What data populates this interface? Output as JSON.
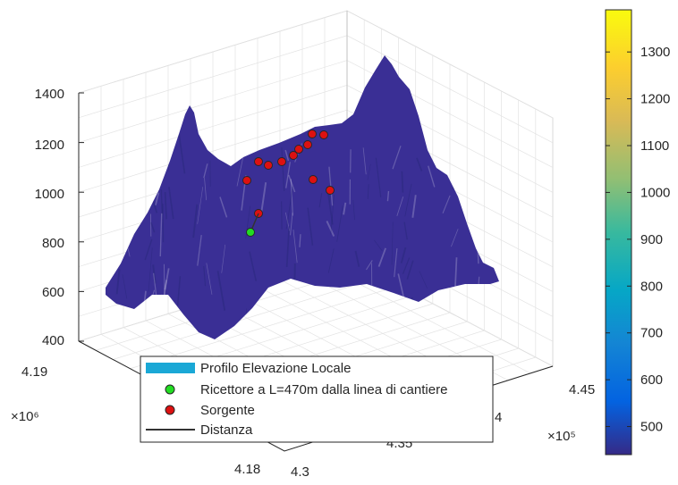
{
  "chart_data": {
    "type": "surface3d",
    "colormap": "parula",
    "zlim": [
      400,
      1400
    ],
    "z_ticks": [
      "400",
      "600",
      "800",
      "1000",
      "1200",
      "1400"
    ],
    "x_ticks": [
      "4.3",
      "4.35",
      "4",
      "4.45"
    ],
    "x_exponent": "×10⁵",
    "y_ticks": [
      "4.18",
      "4.19"
    ],
    "y_exponent": "×10⁶",
    "grid": true,
    "colorbar": {
      "range": [
        440,
        1390
      ],
      "ticks": [
        "500",
        "600",
        "700",
        "800",
        "900",
        "1000",
        "1100",
        "1200",
        "1300"
      ]
    },
    "legend": {
      "placement": "bottom-left",
      "entries": [
        {
          "label": "Profilo Elevazione Locale",
          "marker": "patch",
          "color": "#1aa8d6"
        },
        {
          "label": "Ricettore a L=470m dalla linea di cantiere",
          "marker": "circle",
          "color": "#22dd22"
        },
        {
          "label": "Sorgente",
          "marker": "circle",
          "color": "#dd1111"
        },
        {
          "label": "Distanza",
          "marker": "line",
          "color": "#333333"
        }
      ]
    },
    "sources_elevation": [
      1050,
      1130,
      1120,
      1130,
      1155,
      1175,
      1190,
      1240,
      1230,
      1060,
      1010,
      930
    ],
    "receiver_elevation": 860
  }
}
